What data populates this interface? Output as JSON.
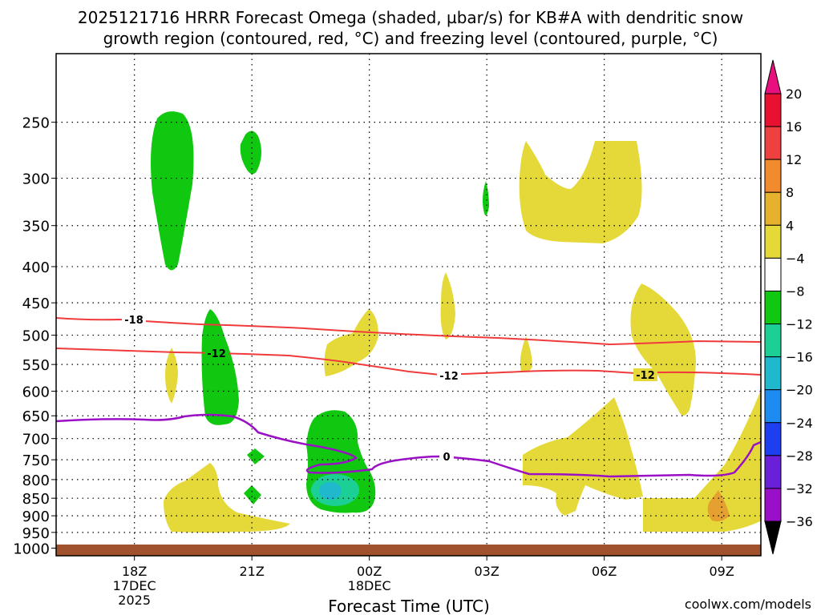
{
  "chart_data": {
    "type": "heatmap",
    "title_line1": "2025121716 HRRR Forecast Omega (shaded, µbar/s) for KB#A with dendritic snow",
    "title_line2": "growth region (contoured, red, °C) and freezing level (contoured, purple, °C)",
    "xlabel": "Forecast Time (UTC)",
    "credit": "coolwx.com/models",
    "x_ticks": [
      {
        "hour": 18,
        "lines": [
          "18Z",
          "17DEC",
          "2025"
        ]
      },
      {
        "hour": 21,
        "lines": [
          "21Z"
        ]
      },
      {
        "hour": 24,
        "lines": [
          "00Z",
          "18DEC"
        ]
      },
      {
        "hour": 27,
        "lines": [
          "03Z"
        ]
      },
      {
        "hour": 30,
        "lines": [
          "06Z"
        ]
      },
      {
        "hour": 33,
        "lines": [
          "09Z"
        ]
      }
    ],
    "xlim_hours": [
      16,
      34
    ],
    "y_ticks": [
      250,
      300,
      350,
      400,
      450,
      500,
      550,
      600,
      650,
      700,
      750,
      800,
      850,
      900,
      950,
      1000
    ],
    "yscale": "log-pressure (mb)",
    "ylim": [
      1025,
      200
    ],
    "colorbar": {
      "labels": [
        "20",
        "16",
        "12",
        "8",
        "4",
        "−4",
        "−8",
        "−12",
        "−16",
        "−20",
        "−24",
        "−28",
        "−32",
        "−36"
      ],
      "colors": [
        "#e8112f",
        "#ef4040",
        "#f28a2e",
        "#e6b22e",
        "#e5d93a",
        "#ffffff",
        "#10c810",
        "#1ccf94",
        "#1fb8cc",
        "#1e8bf0",
        "#1e3ff0",
        "#6a1fd8",
        "#9a10c8",
        "#a8a8a8"
      ],
      "over_color": "#e8107e",
      "under_color": "#000000"
    },
    "contours": {
      "dgz": {
        "color": "#ef3b3b",
        "labels": [
          "-18",
          "-12",
          "-12",
          "-12"
        ]
      },
      "freezing": {
        "color": "#9b10c4",
        "labels": [
          "0"
        ]
      }
    },
    "ground_color": "#a0522d"
  }
}
